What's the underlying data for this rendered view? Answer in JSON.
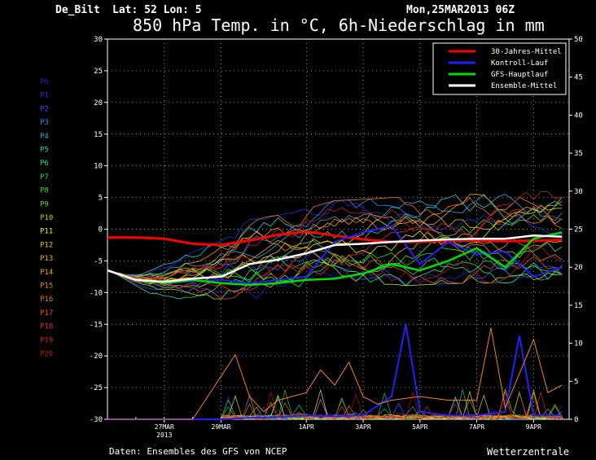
{
  "header": {
    "station": "De_Bilt",
    "location": "Lat: 52 Lon: 5",
    "date": "Mon,25MAR2013 06Z",
    "title": "850 hPa Temp. in °C, 6h-Niederschlag in mm"
  },
  "footer": {
    "source": "Daten: Ensembles des GFS von NCEP",
    "brand": "Wetterzentrale"
  },
  "colors": {
    "background": "#000000",
    "axes": "#ffffff",
    "grid": "#c8c8c8",
    "climate_mean": "#ff0000",
    "control": "#2020ff",
    "gfs_main": "#00e000",
    "ensemble_mean": "#ffffff"
  },
  "members": [
    {
      "label": "P0",
      "color": "#2020d0"
    },
    {
      "label": "P1",
      "color": "#2030e0"
    },
    {
      "label": "P2",
      "color": "#2050ff"
    },
    {
      "label": "P3",
      "color": "#2090ff"
    },
    {
      "label": "P4",
      "color": "#20b0e0"
    },
    {
      "label": "P5",
      "color": "#20d0d0"
    },
    {
      "label": "P6",
      "color": "#20e0a0"
    },
    {
      "label": "P7",
      "color": "#20e060"
    },
    {
      "label": "P8",
      "color": "#30e030"
    },
    {
      "label": "P9",
      "color": "#50e020"
    },
    {
      "label": "P10",
      "color": "#a0e000"
    },
    {
      "label": "P11",
      "color": "#f0f000"
    },
    {
      "label": "P12",
      "color": "#f0c000"
    },
    {
      "label": "P13",
      "color": "#f0b000"
    },
    {
      "label": "P14",
      "color": "#f0a000"
    },
    {
      "label": "P15",
      "color": "#f08020"
    },
    {
      "label": "P16",
      "color": "#f07030"
    },
    {
      "label": "P17",
      "color": "#f05020"
    },
    {
      "label": "P18",
      "color": "#e03020"
    },
    {
      "label": "P19",
      "color": "#d02020"
    },
    {
      "label": "P20",
      "color": "#c01010"
    }
  ],
  "chart_data": {
    "type": "line",
    "title": "850 hPa Temp. in °C, 6h-Niederschlag in mm",
    "x_labels": [
      "27MAR\n2013",
      "29MAR",
      "1APR",
      "3APR",
      "5APR",
      "7APR",
      "9APR"
    ],
    "x_label_days": [
      2,
      4,
      7,
      9,
      11,
      13,
      15
    ],
    "xlim_days": [
      0,
      16.25
    ],
    "left_axis": {
      "ylim": [
        -30,
        30
      ],
      "ticks": [
        30,
        25,
        20,
        15,
        10,
        5,
        0,
        -5,
        -10,
        -15,
        -20,
        -25,
        -30
      ]
    },
    "right_axis": {
      "ylim": [
        0,
        50
      ],
      "ticks": [
        50,
        45,
        40,
        35,
        30,
        25,
        20,
        15,
        10,
        5,
        0
      ]
    },
    "grid": true,
    "legend": {
      "position": "top-right",
      "entries": [
        "30-Jahres-Mittel",
        "Kontroll-Lauf",
        "GFS-Hauptlauf",
        "Ensemble-Mittel"
      ]
    },
    "series": [
      {
        "name": "30-Jahres-Mittel",
        "axis": "left",
        "x": [
          0,
          1,
          2,
          3,
          4,
          5,
          6,
          7,
          8,
          9,
          10,
          11,
          12,
          13,
          14,
          15,
          16
        ],
        "y": [
          -1.3,
          -1.3,
          -1.5,
          -2.3,
          -2.5,
          -1.8,
          -0.9,
          -0.4,
          -1.0,
          -1.6,
          -2.0,
          -2.0,
          -1.8,
          -1.8,
          -1.9,
          -1.8,
          -1.7
        ]
      },
      {
        "name": "Kontroll-Lauf",
        "axis": "left",
        "x": [
          0,
          1,
          2,
          3,
          4,
          5,
          6,
          7,
          8,
          9,
          10,
          11,
          12,
          13,
          14,
          15,
          16
        ],
        "y": [
          -6.5,
          -8.0,
          -8.5,
          -8.2,
          -8.0,
          -8.5,
          -8.0,
          -7.5,
          -2.0,
          -0.5,
          0.5,
          -5.5,
          -2.0,
          -4.0,
          -3.5,
          -7.5,
          -6.0
        ]
      },
      {
        "name": "GFS-Hauptlauf",
        "axis": "left",
        "x": [
          0,
          1,
          2,
          3,
          4,
          5,
          6,
          7,
          8,
          9,
          10,
          11,
          12,
          13,
          14,
          15,
          16
        ],
        "y": [
          -6.5,
          -8.0,
          -8.5,
          -8.0,
          -8.5,
          -8.8,
          -8.5,
          -8.0,
          -7.8,
          -7.0,
          -5.5,
          -6.5,
          -5.0,
          -3.0,
          -6.0,
          -1.5,
          -0.5
        ]
      },
      {
        "name": "Ensemble-Mittel",
        "axis": "left",
        "x": [
          0,
          1,
          2,
          3,
          4,
          5,
          6,
          7,
          8,
          9,
          10,
          11,
          12,
          13,
          14,
          15,
          16
        ],
        "y": [
          -6.5,
          -8.0,
          -8.3,
          -7.8,
          -7.5,
          -5.5,
          -4.8,
          -3.8,
          -2.5,
          -2.3,
          -2.0,
          -1.8,
          -1.6,
          -1.5,
          -1.5,
          -1.0,
          -1.2
        ]
      },
      {
        "name": "Kontroll-Lauf Niederschlag",
        "axis": "right",
        "x": [
          0,
          4,
          5,
          6,
          7,
          8,
          9,
          10,
          10.5,
          11,
          12,
          13,
          14,
          14.5,
          15,
          16
        ],
        "y": [
          0,
          0,
          0.2,
          0.3,
          0.5,
          0.4,
          0.5,
          3.0,
          12.5,
          1.0,
          0.5,
          0.5,
          1.0,
          11.0,
          0.5,
          0.5
        ]
      },
      {
        "name": "Niederschlag Mitglieder (Spitzen)",
        "axis": "right",
        "x": [
          0,
          3,
          4.5,
          5,
          5.5,
          6,
          7,
          7.5,
          8,
          8.5,
          9,
          9.5,
          10,
          11,
          12,
          13,
          13.5,
          14,
          14.5,
          15,
          15.5,
          16
        ],
        "y": [
          0,
          0,
          8.5,
          3.0,
          1.0,
          2.5,
          3.5,
          6.5,
          4.5,
          7.5,
          3.0,
          2.0,
          2.5,
          3.0,
          2.5,
          2.5,
          12.0,
          1.5,
          6.0,
          10.5,
          3.5,
          4.5
        ]
      }
    ],
    "members_ylim_band": [
      -11,
      6
    ]
  }
}
